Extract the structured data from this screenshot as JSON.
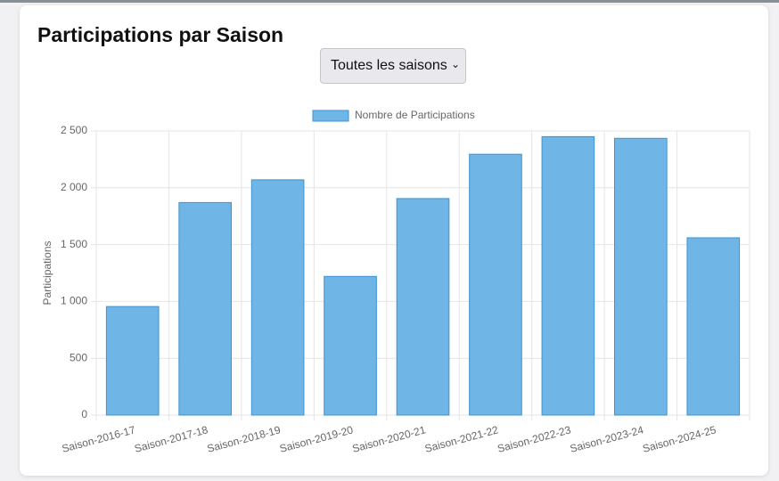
{
  "header": {
    "title": "Participations par Saison"
  },
  "filter": {
    "selected": "Toutes les saisons"
  },
  "chart_data": {
    "type": "bar",
    "categories": [
      "Saison-2016-17",
      "Saison-2017-18",
      "Saison-2018-19",
      "Saison-2019-20",
      "Saison-2020-21",
      "Saison-2021-22",
      "Saison-2022-23",
      "Saison-2023-24",
      "Saison-2024-25"
    ],
    "series": [
      {
        "name": "Nombre de Participations",
        "color": "#6fb5e5",
        "values": [
          955,
          1870,
          2070,
          1220,
          1905,
          2295,
          2450,
          2435,
          1560
        ]
      }
    ],
    "y_label": "Participations",
    "ylim": [
      0,
      2500
    ],
    "yticks": [
      0,
      500,
      {
        "value": 1000,
        "label": "1 000"
      },
      {
        "value": 1500,
        "label": "1 500"
      },
      {
        "value": 2000,
        "label": "2 000"
      },
      {
        "value": 2500,
        "label": "2 500"
      }
    ],
    "grid": true,
    "legend": "top"
  }
}
